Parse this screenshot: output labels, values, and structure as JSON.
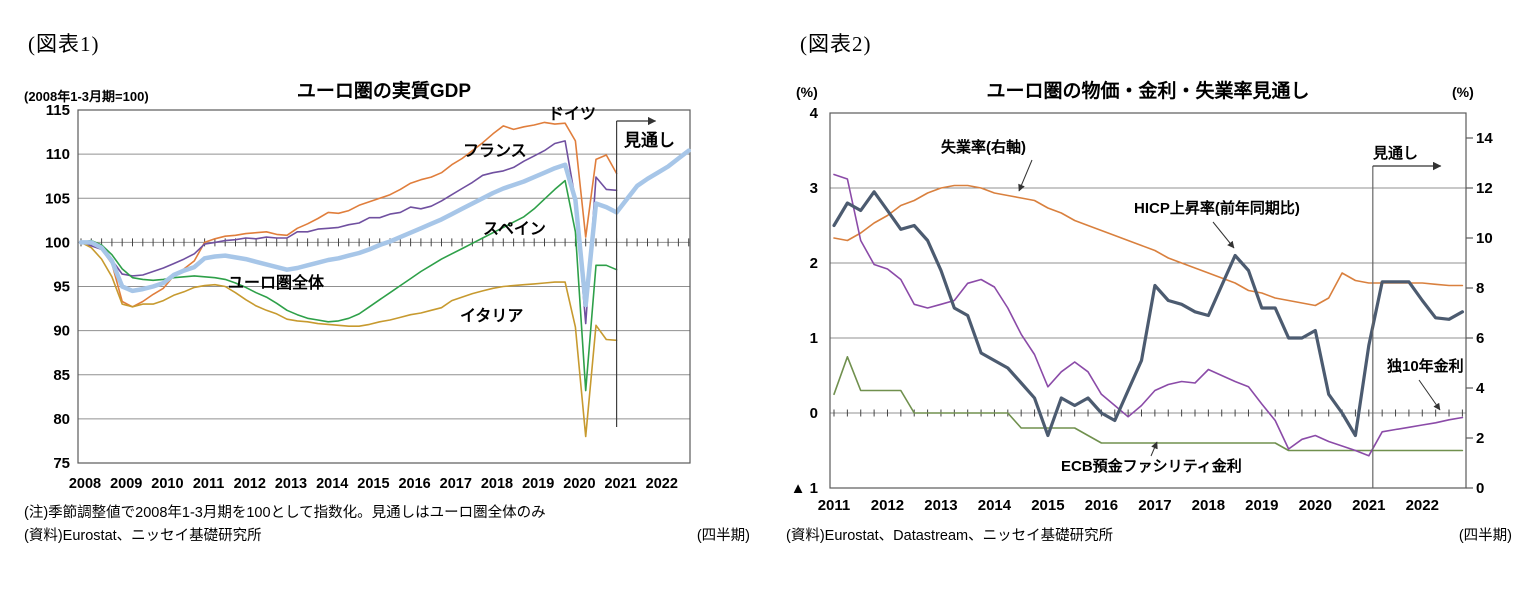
{
  "fig1": {
    "header": "(図表1)",
    "axis_unit": "(2008年1-3月期=100)",
    "title": "ユーロ圏の実質GDP",
    "forecast_label": "見通し",
    "note": "(注)季節調整値で2008年1-3月期を100として指数化。見通しはユーロ圏全体のみ",
    "source": "(資料)Eurostat、ニッセイ基礎研究所",
    "frequency_label": "(四半期)"
  },
  "fig2": {
    "header": "(図表2)",
    "title": "ユーロ圏の物価・金利・失業率見通し",
    "left_axis_unit": "(%)",
    "right_axis_unit": "(%)",
    "forecast_label": "見通し",
    "source": "(資料)Eurostat、Datastream、ニッセイ基礎研究所",
    "frequency_label": "(四半期)"
  },
  "chart_data": [
    {
      "type": "line",
      "title": "ユーロ圏の実質GDP",
      "subtitle": "2008年1-3月期=100",
      "x_frequency": "quarterly",
      "x_years": [
        2008,
        2009,
        2010,
        2011,
        2012,
        2013,
        2014,
        2015,
        2016,
        2017,
        2018,
        2019,
        2020,
        2021,
        2022
      ],
      "ylim": [
        75,
        115
      ],
      "yticks": [
        75,
        80,
        85,
        90,
        95,
        100,
        105,
        110,
        115
      ],
      "grid": "horizontal",
      "forecast_from": "2021Q1",
      "forecast_note": "見通しはユーロ圏全体のみ",
      "series": [
        {
          "name": "ドイツ",
          "color": "#E07E3C",
          "width": 1.6,
          "values": [
            100,
            100.1,
            99.2,
            97.6,
            93.3,
            92.7,
            93.3,
            94.1,
            94.8,
            96.2,
            97.0,
            97.9,
            100.0,
            100.4,
            100.7,
            100.8,
            101.0,
            101.1,
            101.2,
            100.9,
            100.8,
            101.6,
            102.1,
            102.7,
            103.4,
            103.3,
            103.6,
            104.2,
            104.6,
            105.0,
            105.4,
            106.0,
            106.7,
            107.1,
            107.4,
            107.9,
            108.8,
            109.5,
            110.4,
            111.3,
            112.3,
            113.2,
            112.8,
            113.1,
            113.3,
            113.6,
            113.4,
            113.5,
            111.5,
            100.6,
            109.4,
            109.9,
            107.8
          ]
        },
        {
          "name": "フランス",
          "color": "#7050A0",
          "width": 1.6,
          "values": [
            100,
            99.6,
            99.2,
            98.0,
            96.4,
            96.2,
            96.3,
            96.7,
            97.1,
            97.6,
            98.1,
            98.7,
            99.8,
            100.0,
            100.2,
            100.3,
            100.5,
            100.4,
            100.6,
            100.5,
            100.5,
            101.2,
            101.2,
            101.5,
            101.6,
            101.7,
            102.0,
            102.2,
            102.8,
            102.8,
            103.2,
            103.4,
            104.0,
            103.8,
            104.1,
            104.7,
            105.4,
            106.1,
            106.8,
            107.6,
            107.9,
            108.1,
            108.5,
            109.2,
            109.8,
            110.4,
            111.2,
            111.5,
            104.8,
            90.8,
            107.4,
            106.0,
            105.9
          ]
        },
        {
          "name": "スペイン",
          "color": "#2EA049",
          "width": 1.6,
          "values": [
            100,
            100.2,
            99.7,
            98.6,
            97.0,
            96.0,
            95.8,
            95.7,
            95.8,
            96.0,
            96.1,
            96.2,
            96.1,
            96.0,
            95.8,
            95.4,
            94.9,
            94.3,
            93.8,
            93.1,
            92.3,
            91.8,
            91.4,
            91.2,
            91.0,
            91.1,
            91.4,
            91.9,
            92.7,
            93.5,
            94.3,
            95.1,
            95.9,
            96.7,
            97.4,
            98.1,
            98.7,
            99.3,
            99.9,
            100.5,
            101.1,
            101.7,
            102.3,
            102.9,
            103.8,
            104.9,
            106.0,
            107.0,
            101.2,
            83.2,
            97.4,
            97.4,
            96.9
          ]
        },
        {
          "name": "イタリア",
          "color": "#C79A2F",
          "width": 1.6,
          "values": [
            100,
            99.4,
            98.1,
            96.1,
            93.0,
            92.7,
            93.0,
            93.0,
            93.4,
            94.0,
            94.4,
            94.9,
            95.1,
            95.2,
            95.0,
            94.3,
            93.5,
            92.8,
            92.3,
            91.9,
            91.3,
            91.1,
            91.0,
            90.8,
            90.7,
            90.6,
            90.5,
            90.5,
            90.7,
            91.0,
            91.2,
            91.5,
            91.8,
            92.0,
            92.3,
            92.6,
            93.4,
            93.8,
            94.2,
            94.5,
            94.8,
            95.0,
            95.1,
            95.2,
            95.3,
            95.4,
            95.5,
            95.5,
            90.4,
            78.0,
            90.6,
            89.0,
            88.9
          ]
        },
        {
          "name": "ユーロ圏全体",
          "color": "#A7C6E8",
          "width": 4.5,
          "values": [
            100,
            100.0,
            99.4,
            97.9,
            95.0,
            94.5,
            94.7,
            95.0,
            95.4,
            96.3,
            96.8,
            97.2,
            98.2,
            98.4,
            98.5,
            98.3,
            98.1,
            97.8,
            97.5,
            97.2,
            96.9,
            97.1,
            97.4,
            97.7,
            98.0,
            98.2,
            98.5,
            98.8,
            99.2,
            99.7,
            100.1,
            100.6,
            101.1,
            101.6,
            102.1,
            102.6,
            103.2,
            103.8,
            104.4,
            105.0,
            105.6,
            106.1,
            106.5,
            106.9,
            107.4,
            107.9,
            108.4,
            108.8,
            104.8,
            92.9,
            104.4,
            104.0,
            103.4,
            104.9,
            106.4,
            107.2,
            107.9,
            108.6,
            109.5,
            110.4
          ]
        }
      ]
    },
    {
      "type": "line",
      "title": "ユーロ圏の物価・金利・失業率見通し",
      "x_frequency": "quarterly",
      "x_years": [
        2011,
        2012,
        2013,
        2014,
        2015,
        2016,
        2017,
        2018,
        2019,
        2020,
        2021,
        2022
      ],
      "left_ylim": [
        -1,
        4
      ],
      "left_yticks": [
        4,
        3,
        2,
        1,
        0,
        -1
      ],
      "left_ytick_labels": [
        "4",
        "3",
        "2",
        "1",
        "0",
        "▲ 1"
      ],
      "right_ylim": [
        0,
        15
      ],
      "right_yticks": [
        14,
        12,
        10,
        8,
        6,
        4,
        2,
        0
      ],
      "grid": "horizontal",
      "forecast_from": "2021Q2",
      "series": [
        {
          "name": "HICP上昇率(前年同期比)",
          "axis": "left",
          "color": "#4C5B70",
          "width": 3.2,
          "values": [
            2.5,
            2.8,
            2.7,
            2.95,
            2.7,
            2.45,
            2.5,
            2.3,
            1.9,
            1.4,
            1.3,
            0.8,
            0.7,
            0.6,
            0.4,
            0.2,
            -0.3,
            0.2,
            0.1,
            0.2,
            0.0,
            -0.1,
            0.3,
            0.7,
            1.7,
            1.5,
            1.45,
            1.35,
            1.3,
            1.7,
            2.1,
            1.9,
            1.4,
            1.4,
            1.0,
            1.0,
            1.1,
            0.25,
            0.0,
            -0.3,
            0.9,
            1.75,
            1.75,
            1.75,
            1.5,
            1.27,
            1.25,
            1.35
          ]
        },
        {
          "name": "独10年金利",
          "axis": "left",
          "color": "#8B4BA8",
          "width": 1.6,
          "values": [
            3.18,
            3.12,
            2.3,
            1.98,
            1.92,
            1.78,
            1.45,
            1.4,
            1.45,
            1.5,
            1.73,
            1.78,
            1.68,
            1.4,
            1.05,
            0.78,
            0.35,
            0.55,
            0.68,
            0.55,
            0.25,
            0.1,
            -0.05,
            0.1,
            0.3,
            0.38,
            0.42,
            0.4,
            0.58,
            0.5,
            0.42,
            0.35,
            0.12,
            -0.1,
            -0.48,
            -0.35,
            -0.3,
            -0.38,
            -0.44,
            -0.5,
            -0.57,
            -0.25,
            -0.22,
            -0.19,
            -0.16,
            -0.13,
            -0.09,
            -0.06
          ]
        },
        {
          "name": "ECB預金ファシリティ金利",
          "axis": "left",
          "color": "#70904E",
          "width": 1.6,
          "values": [
            0.25,
            0.75,
            0.3,
            0.3,
            0.3,
            0.3,
            0.0,
            0.0,
            0.0,
            0.0,
            0.0,
            0.0,
            0.0,
            0.0,
            -0.2,
            -0.2,
            -0.2,
            -0.2,
            -0.2,
            -0.3,
            -0.4,
            -0.4,
            -0.4,
            -0.4,
            -0.4,
            -0.4,
            -0.4,
            -0.4,
            -0.4,
            -0.4,
            -0.4,
            -0.4,
            -0.4,
            -0.4,
            -0.5,
            -0.5,
            -0.5,
            -0.5,
            -0.5,
            -0.5,
            -0.5,
            -0.5,
            -0.5,
            -0.5,
            -0.5,
            -0.5,
            -0.5,
            -0.5
          ]
        },
        {
          "name": "失業率(右軸)",
          "axis": "right",
          "color": "#D9803E",
          "width": 1.6,
          "values": [
            10.0,
            9.9,
            10.2,
            10.6,
            10.9,
            11.3,
            11.5,
            11.8,
            12.0,
            12.1,
            12.1,
            12.0,
            11.8,
            11.7,
            11.6,
            11.5,
            11.2,
            11.0,
            10.7,
            10.5,
            10.3,
            10.1,
            9.9,
            9.7,
            9.5,
            9.2,
            9.0,
            8.8,
            8.6,
            8.4,
            8.2,
            7.9,
            7.8,
            7.6,
            7.5,
            7.4,
            7.3,
            7.6,
            8.6,
            8.3,
            8.2,
            8.2,
            8.2,
            8.2,
            8.2,
            8.15,
            8.1,
            8.1
          ]
        }
      ]
    }
  ]
}
